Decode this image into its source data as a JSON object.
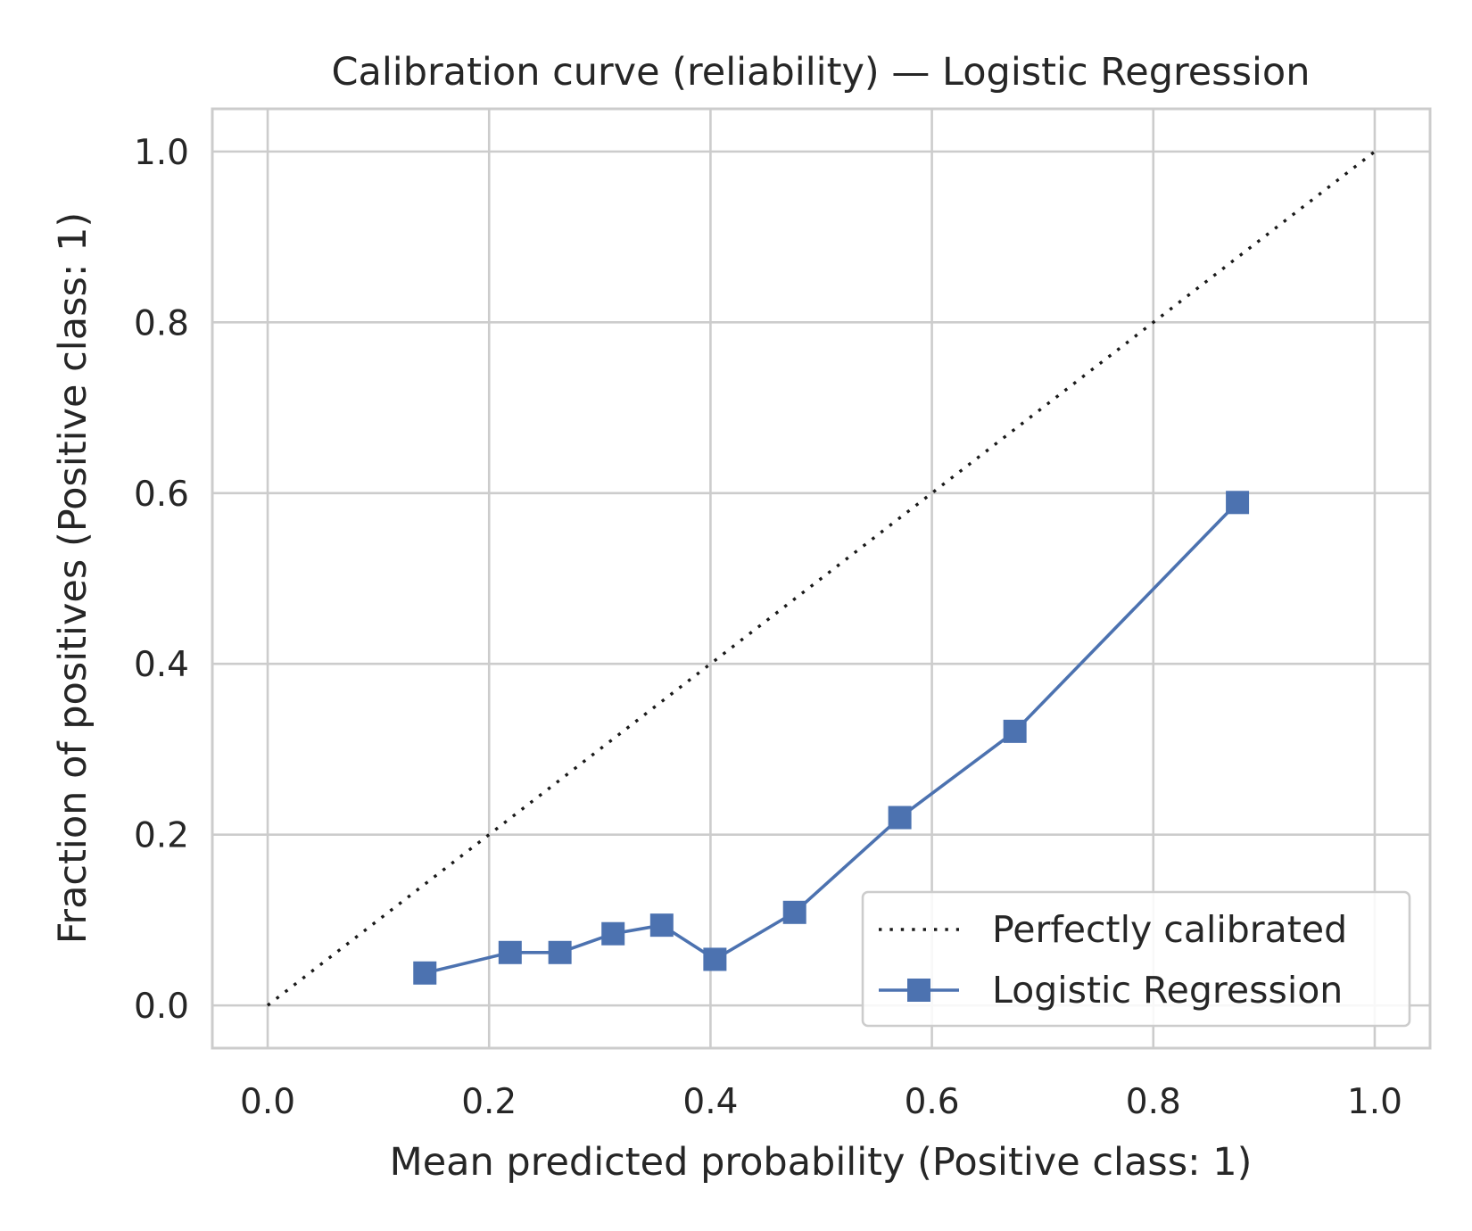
{
  "chart_data": {
    "type": "line",
    "title": "Calibration curve (reliability) — Logistic Regression",
    "xlabel": "Mean predicted probability (Positive class: 1)",
    "ylabel": "Fraction of positives (Positive class: 1)",
    "xlim": [
      -0.05,
      1.05
    ],
    "ylim": [
      -0.05,
      1.05
    ],
    "xticks": [
      "0.0",
      "0.2",
      "0.4",
      "0.6",
      "0.8",
      "1.0"
    ],
    "yticks": [
      "0.0",
      "0.2",
      "0.4",
      "0.6",
      "0.8",
      "1.0"
    ],
    "grid": true,
    "legend_position": "bottom-right",
    "series": [
      {
        "name": "Perfectly calibrated",
        "style": "dotted",
        "color": "#1a1a1a",
        "x": [
          0.0,
          1.0
        ],
        "y": [
          0.0,
          1.0
        ]
      },
      {
        "name": "Logistic Regression",
        "style": "solid",
        "marker": "square",
        "color": "#4c72b0",
        "x": [
          0.142,
          0.219,
          0.264,
          0.312,
          0.356,
          0.404,
          0.476,
          0.571,
          0.675,
          0.876
        ],
        "y": [
          0.038,
          0.062,
          0.062,
          0.084,
          0.094,
          0.054,
          0.109,
          0.22,
          0.321,
          0.589
        ]
      }
    ]
  }
}
